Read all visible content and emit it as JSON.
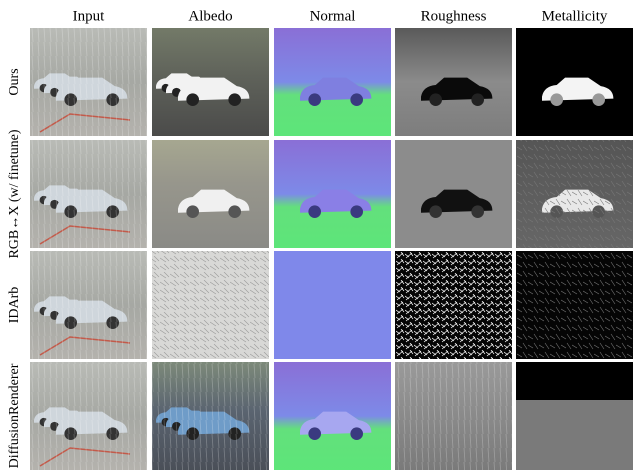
{
  "columns": [
    "Input",
    "Albedo",
    "Normal",
    "Roughness",
    "Metallicity"
  ],
  "rows": [
    "Ours",
    "RGB↔X (w/ finetune)",
    "IDArb",
    "DiffusionRenderer"
  ]
}
